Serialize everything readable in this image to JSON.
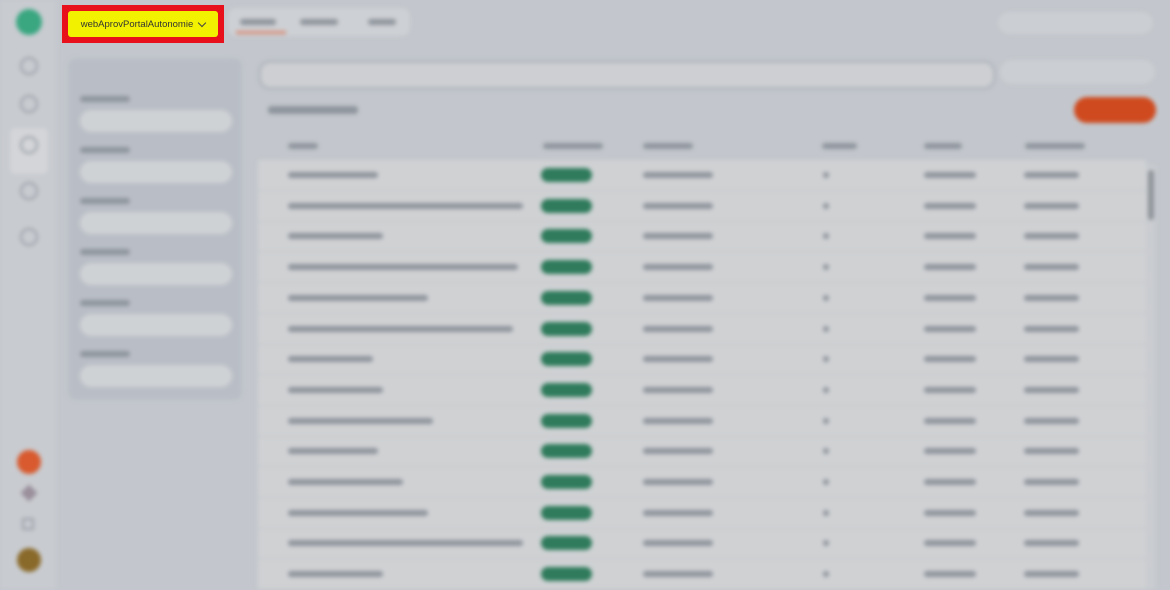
{
  "workspace_selector": {
    "label": "webAprovPortalAutonomie",
    "icon": "chevron-down-icon"
  },
  "colors": {
    "highlight_fill": "#f2f200",
    "highlight_border": "#e8101a",
    "brand": "#3aa781",
    "primary_button": "#cf4a1e",
    "status_badge": "#2f7b5c"
  },
  "blurred": true,
  "table": {
    "visible_rows": 14
  }
}
